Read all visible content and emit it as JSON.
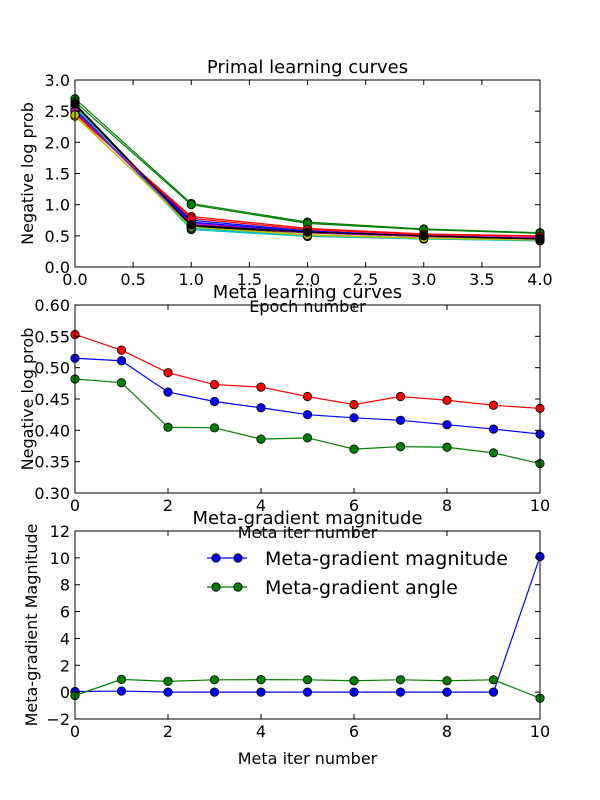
{
  "chart_data": [
    {
      "type": "line",
      "title": "Primal learning curves",
      "xlabel": "Epoch number",
      "ylabel": "Negative log prob",
      "xlim": [
        0,
        4
      ],
      "ylim": [
        0,
        3
      ],
      "xticks": [
        0,
        0.5,
        1,
        1.5,
        2,
        2.5,
        3,
        3.5,
        4
      ],
      "xticklabels": [
        "0.0",
        "0.5",
        "1.0",
        "1.5",
        "2.0",
        "2.5",
        "3.0",
        "3.5",
        "4.0"
      ],
      "yticks": [
        0,
        0.5,
        1,
        1.5,
        2,
        2.5,
        3
      ],
      "yticklabels": [
        "0.0",
        "0.5",
        "1.0",
        "1.5",
        "2.0",
        "2.5",
        "3.0"
      ],
      "grid": false,
      "x": [
        0,
        1,
        2,
        3,
        4
      ],
      "series": [
        {
          "color": "#0000ff",
          "values": [
            2.5,
            0.75,
            0.58,
            0.5,
            0.46
          ]
        },
        {
          "color": "#008000",
          "values": [
            2.7,
            1.02,
            0.72,
            0.61,
            0.55
          ]
        },
        {
          "color": "#ff0000",
          "values": [
            2.44,
            0.81,
            0.62,
            0.53,
            0.5
          ]
        },
        {
          "color": "#00bfbf",
          "values": [
            2.55,
            0.6,
            0.49,
            0.45,
            0.42
          ]
        },
        {
          "color": "#bf00bf",
          "values": [
            2.48,
            0.7,
            0.56,
            0.5,
            0.47
          ]
        },
        {
          "color": "#bfbf00",
          "values": [
            2.42,
            0.66,
            0.52,
            0.47,
            0.44
          ]
        },
        {
          "color": "#000000",
          "values": [
            2.6,
            0.65,
            0.55,
            0.49,
            0.45
          ]
        },
        {
          "color": "#0000ff",
          "values": [
            2.52,
            0.72,
            0.57,
            0.5,
            0.46
          ]
        },
        {
          "color": "#008000",
          "values": [
            2.65,
            1.0,
            0.7,
            0.6,
            0.54
          ]
        },
        {
          "color": "#ff0000",
          "values": [
            2.46,
            0.78,
            0.6,
            0.52,
            0.49
          ]
        },
        {
          "color": "#00bfbf",
          "values": [
            2.57,
            0.62,
            0.5,
            0.45,
            0.42
          ]
        },
        {
          "color": "#bf00bf",
          "values": [
            2.5,
            0.68,
            0.55,
            0.49,
            0.46
          ]
        },
        {
          "color": "#bfbf00",
          "values": [
            2.44,
            0.64,
            0.51,
            0.46,
            0.43
          ]
        },
        {
          "color": "#000000",
          "values": [
            2.62,
            0.67,
            0.56,
            0.5,
            0.45
          ]
        }
      ]
    },
    {
      "type": "line",
      "title": "Meta learning curves",
      "xlabel": "Meta iter number",
      "ylabel": "Negative log prob",
      "xlim": [
        0,
        10
      ],
      "ylim": [
        0.3,
        0.6
      ],
      "xticks": [
        0,
        2,
        4,
        6,
        8,
        10
      ],
      "xticklabels": [
        "0",
        "2",
        "4",
        "6",
        "8",
        "10"
      ],
      "yticks": [
        0.3,
        0.35,
        0.4,
        0.45,
        0.5,
        0.55,
        0.6
      ],
      "yticklabels": [
        "0.30",
        "0.35",
        "0.40",
        "0.45",
        "0.50",
        "0.55",
        "0.60"
      ],
      "grid": false,
      "x": [
        0,
        1,
        2,
        3,
        4,
        5,
        6,
        7,
        8,
        9,
        10
      ],
      "series": [
        {
          "color": "#0000ff",
          "values": [
            0.515,
            0.511,
            0.461,
            0.446,
            0.436,
            0.425,
            0.42,
            0.416,
            0.409,
            0.402,
            0.394
          ]
        },
        {
          "color": "#ff0000",
          "values": [
            0.553,
            0.528,
            0.492,
            0.473,
            0.469,
            0.454,
            0.441,
            0.454,
            0.448,
            0.44,
            0.435
          ]
        },
        {
          "color": "#008000",
          "values": [
            0.482,
            0.476,
            0.405,
            0.404,
            0.386,
            0.388,
            0.37,
            0.374,
            0.373,
            0.364,
            0.347
          ]
        }
      ]
    },
    {
      "type": "line",
      "title": "Meta-gradient magnitude",
      "xlabel": "Meta iter number",
      "ylabel": "Meta-gradient Magnitude",
      "xlim": [
        0,
        10
      ],
      "ylim": [
        -2,
        12
      ],
      "xticks": [
        0,
        2,
        4,
        6,
        8,
        10
      ],
      "xticklabels": [
        "0",
        "2",
        "4",
        "6",
        "8",
        "10"
      ],
      "yticks": [
        -2,
        0,
        2,
        4,
        6,
        8,
        10,
        12
      ],
      "yticklabels": [
        "−2",
        "0",
        "2",
        "4",
        "6",
        "8",
        "10",
        "12"
      ],
      "grid": false,
      "legend_position": "top-right",
      "x": [
        0,
        1,
        2,
        3,
        4,
        5,
        6,
        7,
        8,
        9,
        10
      ],
      "series": [
        {
          "name": "Meta-gradient magnitude",
          "color": "#0000ff",
          "values": [
            0.05,
            0.08,
            0.0,
            0.0,
            0.0,
            0.0,
            0.0,
            0.0,
            0.0,
            0.0,
            10.1
          ]
        },
        {
          "name": "Meta-gradient angle",
          "color": "#008000",
          "values": [
            -0.25,
            0.95,
            0.8,
            0.92,
            0.93,
            0.92,
            0.85,
            0.92,
            0.85,
            0.92,
            -0.45
          ]
        }
      ]
    }
  ]
}
